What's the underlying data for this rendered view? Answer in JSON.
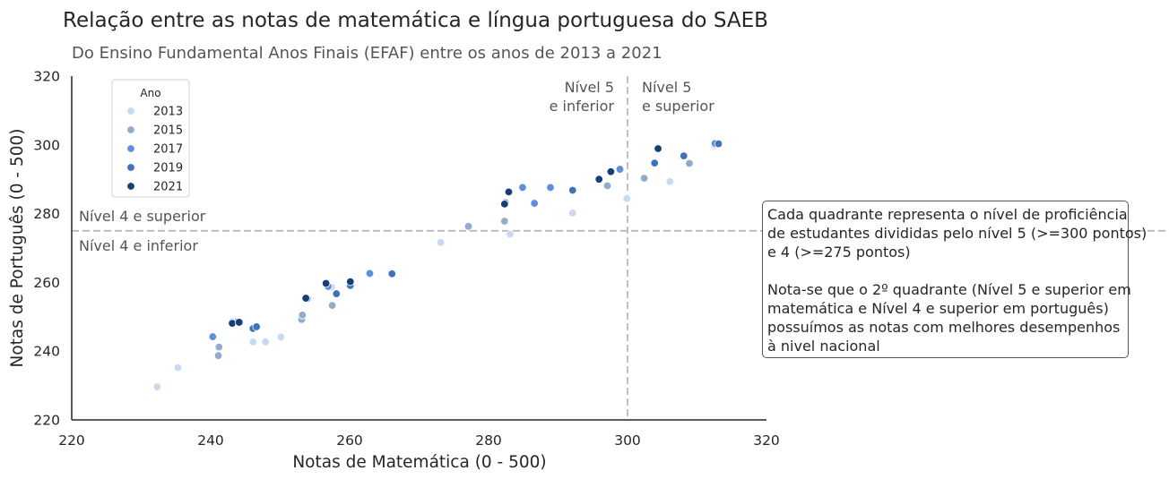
{
  "chart_data": {
    "type": "scatter",
    "title": "Relação entre as notas de matemática e língua portuguesa do SAEB",
    "subtitle": "Do Ensino Fundamental Anos Finais (EFAF) entre os anos de 2013 a 2021",
    "xlabel": "Notas de Matemática (0 - 500)",
    "ylabel": "Notas de Português (0 - 500)",
    "xlim": [
      220,
      320
    ],
    "ylim": [
      220,
      320
    ],
    "xticks": [
      "220",
      "240",
      "260",
      "280",
      "300",
      "320"
    ],
    "yticks": [
      "220",
      "240",
      "260",
      "280",
      "300",
      "320"
    ],
    "grid": false,
    "legend": {
      "title": "Ano",
      "placement": "upper-left"
    },
    "reference_lines": {
      "x": 300,
      "y": 275
    },
    "annotations": {
      "nivel4_superior": "Nível 4 e superior",
      "nivel4_inferior": "Nível 4 e inferior",
      "nivel5_inferior": [
        "Nível 5",
        "e inferior"
      ],
      "nivel5_superior": [
        "Nível 5",
        "e superior"
      ]
    },
    "note": "Cada quadrante representa o nível de proficiência\nde estudantes divididas pelo nível 5 (>=300 pontos)\ne 4 (>=275 pontos)\n\nNota-se que o 2º quadrante (Nível 5 e superior em\nmatemática e Nível 4 e superior em português)\npossuímos as notas com melhores desempenhos\nà nivel nacional",
    "series": [
      {
        "name": "2013",
        "color": "#c9d9f2",
        "x": [
          232.3,
          235.3,
          243.1,
          246.1,
          247.9,
          250.1,
          257.4,
          273.1,
          283.1,
          292.1,
          299.9,
          306.1,
          312.5
        ],
        "y": [
          229.6,
          235.2,
          248.6,
          242.7,
          242.7,
          244.1,
          258.6,
          271.6,
          274.0,
          280.2,
          284.4,
          289.3,
          299.9
        ]
      },
      {
        "name": "2015",
        "color": "#92abc9",
        "x": [
          241.1,
          241.2,
          253.1,
          253.2,
          257.5,
          277.1,
          282.3,
          297.1,
          302.4,
          308.9
        ],
        "y": [
          238.7,
          241.2,
          249.2,
          250.5,
          253.3,
          276.3,
          277.8,
          288.1,
          290.3,
          294.6
        ]
      },
      {
        "name": "2017",
        "color": "#5d8fdd",
        "x": [
          240.3,
          253.9,
          256.9,
          262.9,
          282.4,
          284.9,
          286.6,
          288.9,
          298.9,
          312.6
        ],
        "y": [
          244.2,
          255.3,
          258.8,
          262.6,
          283.2,
          287.6,
          283.0,
          287.6,
          292.9,
          300.4
        ]
      },
      {
        "name": "2019",
        "color": "#3e73ba",
        "x": [
          243.9,
          246.1,
          246.6,
          258.1,
          260.1,
          266.1,
          292.1,
          303.9,
          308.1,
          313.1
        ],
        "y": [
          248.5,
          246.6,
          247.1,
          256.7,
          259.1,
          262.5,
          286.8,
          294.7,
          296.8,
          300.3
        ]
      },
      {
        "name": "2021",
        "color": "#163f78",
        "x": [
          243.1,
          244.1,
          253.7,
          256.6,
          260.1,
          282.3,
          282.9,
          295.9,
          297.6,
          304.4
        ],
        "y": [
          248.1,
          248.4,
          255.4,
          259.7,
          260.2,
          282.8,
          286.3,
          290.0,
          292.2,
          298.9
        ]
      }
    ]
  }
}
